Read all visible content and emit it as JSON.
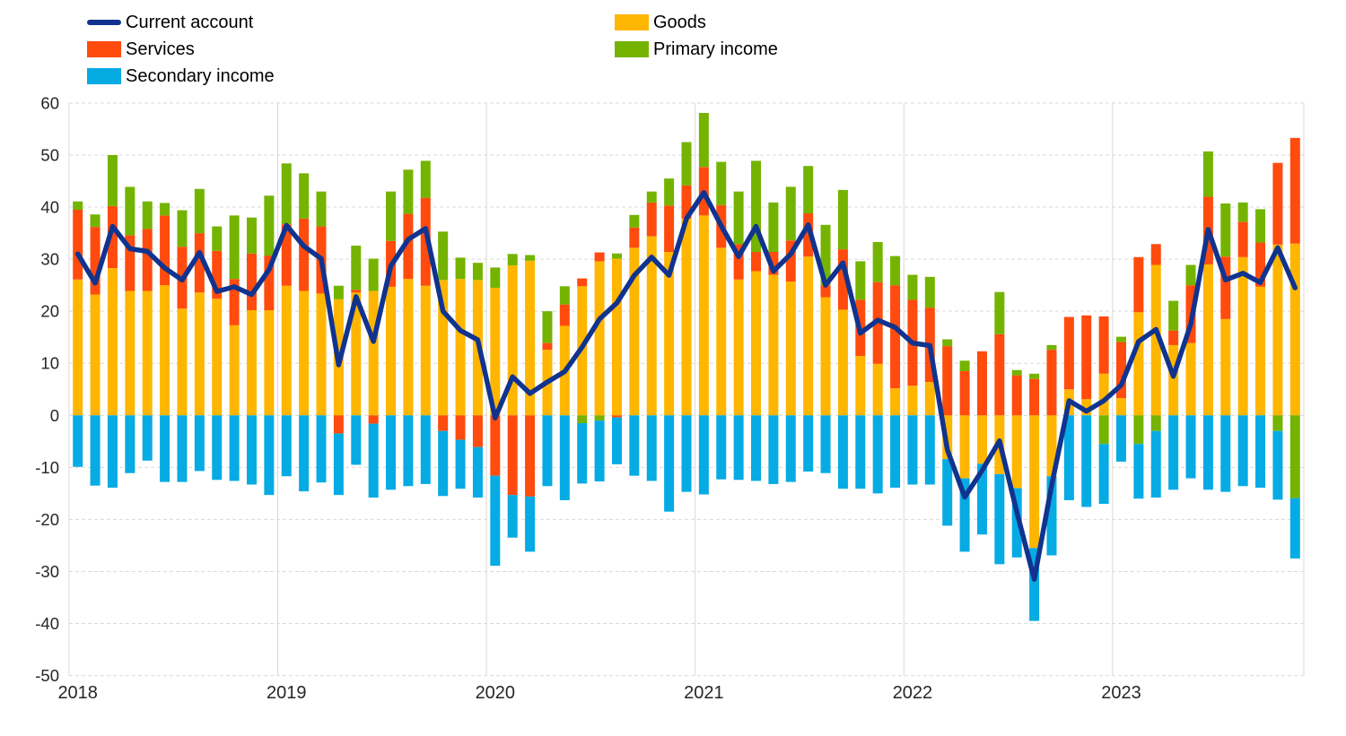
{
  "legend": {
    "items": [
      {
        "label": "Current account",
        "swatch": "line",
        "color": "#10338F"
      },
      {
        "label": "Services",
        "swatch": "rect",
        "color": "#FF4B0D"
      },
      {
        "label": "Secondary income",
        "swatch": "rect",
        "color": "#06ABE4"
      },
      {
        "label": "Goods",
        "swatch": "rect",
        "color": "#FFB600"
      },
      {
        "label": "Primary income",
        "swatch": "rect",
        "color": "#74B400"
      }
    ]
  },
  "y_axis": {
    "ticks": [
      60,
      50,
      40,
      30,
      20,
      10,
      0,
      -10,
      -20,
      -30,
      -40,
      -50
    ]
  },
  "x_axis": {
    "ticks": [
      "2018",
      "2019",
      "2020",
      "2021",
      "2022",
      "2023"
    ]
  },
  "chart_data": {
    "type": "bar",
    "subtype": "stacked-bars-with-line-overlay",
    "months_start": "2018-01",
    "months_end": "2023-11",
    "n": 71,
    "ylim": [
      -50,
      60
    ],
    "ytick_step": 10,
    "grid": "on",
    "legend_position": "top",
    "colors": {
      "current_account": "#10338F",
      "goods": "#FFB600",
      "services": "#FF4B0D",
      "primary_income": "#74B400",
      "secondary_income": "#06ABE4",
      "gridline": "#D9D9D9",
      "axis_text": "#262626"
    },
    "series": [
      {
        "name": "Goods",
        "color": "#FFB600",
        "values": [
          26.1,
          23.2,
          28.3,
          23.9,
          23.9,
          25.0,
          20.5,
          23.6,
          22.4,
          17.3,
          20.2,
          20.2,
          24.9,
          23.9,
          23.4,
          22.3,
          23.6,
          23.9,
          24.7,
          26.2,
          24.9,
          26.0,
          26.2,
          26.0,
          24.5,
          28.8,
          29.7,
          12.6,
          17.2,
          24.8,
          29.6,
          30.1,
          32.2,
          34.4,
          31.4,
          37.8,
          38.4,
          32.2,
          26.1,
          27.7,
          27.0,
          25.7,
          30.5,
          22.7,
          20.3,
          11.4,
          9.9,
          5.2,
          5.7,
          6.4,
          -8.4,
          -12.1,
          -9.3,
          -11.3,
          -14.0,
          -25.5,
          -11.7,
          5.0,
          3.1,
          8.0,
          3.3,
          19.8,
          28.9,
          13.5,
          13.9,
          29.0,
          18.5,
          30.4,
          24.7,
          32.8,
          33.0
        ]
      },
      {
        "name": "Services",
        "color": "#FF4B0D",
        "values": [
          13.4,
          13.0,
          11.9,
          10.7,
          11.9,
          13.4,
          11.9,
          11.4,
          9.2,
          8.9,
          10.9,
          10.5,
          11.8,
          13.9,
          12.9,
          -3.5,
          0.5,
          -1.6,
          8.8,
          12.5,
          16.9,
          -3.0,
          -4.7,
          -6.1,
          -11.6,
          -15.3,
          -15.6,
          1.3,
          4.1,
          1.5,
          1.7,
          -0.4,
          3.9,
          6.5,
          8.9,
          6.4,
          9.3,
          8.2,
          6.8,
          3.7,
          4.4,
          7.9,
          8.3,
          2.3,
          11.6,
          10.8,
          15.7,
          19.8,
          16.5,
          14.3,
          13.3,
          8.5,
          12.3,
          15.6,
          7.7,
          7.0,
          12.6,
          13.9,
          16.1,
          11.0,
          10.8,
          10.6,
          4.0,
          2.8,
          11.1,
          13.0,
          12.0,
          6.8,
          8.5,
          15.7,
          20.3
        ]
      },
      {
        "name": "Primary income",
        "color": "#74B400",
        "values": [
          1.6,
          2.4,
          9.8,
          9.3,
          5.3,
          2.4,
          7.0,
          8.5,
          4.7,
          12.2,
          6.9,
          11.5,
          11.7,
          8.7,
          6.7,
          2.6,
          8.5,
          6.2,
          9.5,
          8.5,
          7.1,
          9.3,
          4.1,
          3.3,
          3.9,
          2.2,
          1.1,
          6.1,
          3.5,
          -1.5,
          -1.0,
          1.0,
          2.4,
          2.1,
          5.2,
          8.3,
          10.4,
          8.3,
          10.1,
          17.5,
          9.5,
          10.3,
          9.1,
          11.6,
          11.4,
          7.4,
          7.7,
          5.6,
          4.8,
          5.9,
          1.3,
          2.0,
          0,
          8.1,
          1.0,
          1.0,
          0.9,
          0,
          0,
          -5.5,
          1.0,
          -5.5,
          -3.0,
          5.7,
          3.9,
          8.7,
          10.2,
          3.7,
          6.4,
          -3.0,
          -15.9
        ]
      },
      {
        "name": "Secondary income",
        "color": "#06ABE4",
        "values": [
          -9.9,
          -13.5,
          -13.9,
          -11.1,
          -8.7,
          -12.8,
          -12.8,
          -10.7,
          -12.4,
          -12.6,
          -13.3,
          -15.3,
          -11.7,
          -14.6,
          -12.9,
          -11.8,
          -9.5,
          -14.2,
          -14.3,
          -13.6,
          -13.2,
          -12.5,
          -9.4,
          -9.7,
          -17.3,
          -8.2,
          -10.6,
          -13.6,
          -16.3,
          -11.6,
          -11.7,
          -9.0,
          -11.6,
          -12.6,
          -18.5,
          -14.7,
          -15.2,
          -12.3,
          -12.4,
          -12.6,
          -13.2,
          -12.8,
          -10.8,
          -11.1,
          -14.1,
          -14.1,
          -15.0,
          -13.9,
          -13.3,
          -13.3,
          -12.8,
          -14.1,
          -13.6,
          -17.3,
          -13.3,
          -14.0,
          -15.2,
          -16.3,
          -17.6,
          -11.5,
          -8.9,
          -10.5,
          -12.8,
          -14.3,
          -12.1,
          -14.3,
          -14.7,
          -13.6,
          -13.9,
          -13.2,
          -11.6
        ]
      }
    ],
    "line": {
      "name": "Current account",
      "color": "#10338F",
      "values": [
        31.0,
        25.4,
        36.3,
        32.0,
        31.5,
        28.3,
        26.0,
        31.3,
        23.8,
        24.7,
        23.2,
        28.0,
        36.5,
        32.5,
        30.1,
        9.7,
        22.8,
        14.2,
        28.7,
        33.8,
        35.9,
        20.0,
        16.3,
        14.5,
        -0.5,
        7.4,
        4.2,
        6.4,
        8.4,
        13.1,
        18.5,
        21.6,
        26.9,
        30.4,
        26.9,
        37.8,
        42.8,
        36.4,
        30.5,
        36.3,
        27.7,
        31.0,
        36.6,
        25.0,
        29.3,
        15.8,
        18.3,
        16.9,
        13.9,
        13.4,
        -6.6,
        -15.7,
        -10.6,
        -4.9,
        -18.6,
        -31.5,
        -13.4,
        2.8,
        0.8,
        2.8,
        5.8,
        14.2,
        16.5,
        7.5,
        17.5,
        35.7,
        26.0,
        27.3,
        25.5,
        32.2,
        24.5
      ]
    }
  }
}
